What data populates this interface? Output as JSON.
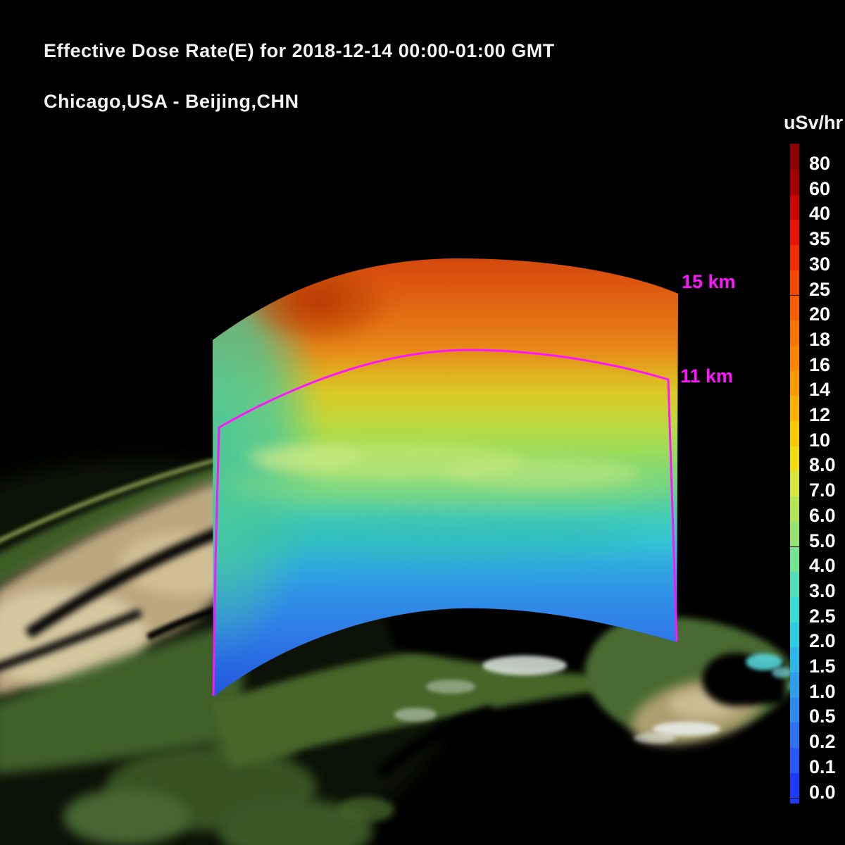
{
  "chart_data": {
    "type": "heatmap",
    "title": "Effective Dose Rate(E) for 2018-12-14 00:00-01:00 GMT",
    "subtitle": "Chicago,USA - Beijing,CHN",
    "colorbar": {
      "unit": "uSv/hr",
      "tick_labels": [
        "80",
        "60",
        "40",
        "35",
        "30",
        "25",
        "20",
        "18",
        "16",
        "14",
        "12",
        "10",
        "8.0",
        "7.0",
        "6.0",
        "5.0",
        "4.0",
        "3.0",
        "2.5",
        "2.0",
        "1.5",
        "1.0",
        "0.5",
        "0.2",
        "0.1",
        "0.0"
      ],
      "segment_colors": [
        "#8c0000",
        "#a40000",
        "#cc0500",
        "#e81400",
        "#f22e00",
        "#f54500",
        "#f75e00",
        "#f97400",
        "#fa8600",
        "#fb9a00",
        "#fbb000",
        "#f8c800",
        "#f2dc10",
        "#d8e63c",
        "#b4e455",
        "#96e372",
        "#74e392",
        "#52dfb6",
        "#36dbd2",
        "#2ccde2",
        "#2db5ea",
        "#2f9fec",
        "#2f89ee",
        "#2e71f2",
        "#2858f6",
        "#1c3cfa"
      ],
      "tick_color": "#ffffff"
    },
    "altitude_labels": [
      "15 km",
      "11 km"
    ],
    "annotation_color": "#ff14ff",
    "text_color": "#f2f2f2",
    "curtain_gradient": [
      {
        "offset": 0.0,
        "color": "#d2490e"
      },
      {
        "offset": 0.05,
        "color": "#dc5510"
      },
      {
        "offset": 0.13,
        "color": "#e36c13"
      },
      {
        "offset": 0.21,
        "color": "#e68a18"
      },
      {
        "offset": 0.26,
        "color": "#dfae1e"
      },
      {
        "offset": 0.31,
        "color": "#d9cb28"
      },
      {
        "offset": 0.37,
        "color": "#c0d83c"
      },
      {
        "offset": 0.43,
        "color": "#a0dc55"
      },
      {
        "offset": 0.49,
        "color": "#7ed778"
      },
      {
        "offset": 0.55,
        "color": "#57cf9b"
      },
      {
        "offset": 0.6,
        "color": "#3fcbbd"
      },
      {
        "offset": 0.65,
        "color": "#32c2d4"
      },
      {
        "offset": 0.7,
        "color": "#2fa9e0"
      },
      {
        "offset": 0.76,
        "color": "#2f93e6"
      },
      {
        "offset": 0.84,
        "color": "#2f7fe8"
      },
      {
        "offset": 1.0,
        "color": "#2456dd"
      }
    ]
  }
}
